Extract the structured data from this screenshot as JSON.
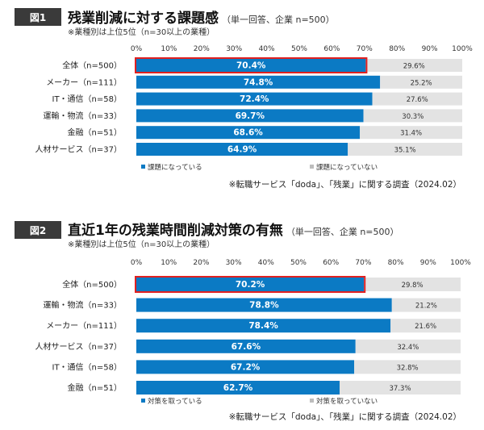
{
  "figures": [
    {
      "badge": "図1",
      "title": "残業削減に対する課題感",
      "subtitle": "（単一回答、企業 n=500）",
      "note": "※業種別は上位5位（n=30以上の業種）",
      "source": "※転職サービス「doda」、「残業」に関する調査（2024.02）"
    },
    {
      "badge": "図2",
      "title": "直近1年の残業時間削減対策の有無",
      "subtitle": "（単一回答、企業 n=500）",
      "note": "※業種別は上位5位（n=30以上の業種）",
      "source": "※転職サービス「doda」、「残業」に関する調査（2024.02）"
    }
  ],
  "chart_data": [
    {
      "type": "bar",
      "stacked": true,
      "orientation": "horizontal",
      "categories": [
        "全体（n=500）",
        "メーカー（n=111）",
        "IT・通信（n=58）",
        "運輸・物流（n=33）",
        "金融（n=51）",
        "人材サービス（n=37）"
      ],
      "series": [
        {
          "name": "課題になっている",
          "values": [
            70.4,
            74.8,
            72.4,
            69.7,
            68.6,
            64.9
          ],
          "color": "#0b7ac4"
        },
        {
          "name": "課題になっていない",
          "values": [
            29.6,
            25.2,
            27.6,
            30.3,
            31.4,
            35.1
          ],
          "color": "#e3e3e3"
        }
      ],
      "value_labels": [
        [
          "70.4%",
          "74.8%",
          "72.4%",
          "69.7%",
          "68.6%",
          "64.9%"
        ],
        [
          "29.6%",
          "25.2%",
          "27.6%",
          "30.3%",
          "31.4%",
          "35.1%"
        ]
      ],
      "xticks": [
        "0%",
        "10%",
        "20%",
        "30%",
        "40%",
        "50%",
        "60%",
        "70%",
        "80%",
        "90%",
        "100%"
      ],
      "xlim": [
        0,
        100
      ],
      "highlight_index": 0,
      "highlight_color": "#e02020",
      "legend_position": "bottom-left",
      "grid": false
    },
    {
      "type": "bar",
      "stacked": true,
      "orientation": "horizontal",
      "categories": [
        "全体（n=500）",
        "運輸・物流（n=33）",
        "メーカー（n=111）",
        "人材サービス（n=37）",
        "IT・通信（n=58）",
        "金融（n=51）"
      ],
      "series": [
        {
          "name": "対策を取っている",
          "values": [
            70.2,
            78.8,
            78.4,
            67.6,
            67.2,
            62.7
          ],
          "color": "#0b7ac4"
        },
        {
          "name": "対策を取っていない",
          "values": [
            29.8,
            21.2,
            21.6,
            32.4,
            32.8,
            37.3
          ],
          "color": "#e3e3e3"
        }
      ],
      "value_labels": [
        [
          "70.2%",
          "78.8%",
          "78.4%",
          "67.6%",
          "67.2%",
          "62.7%"
        ],
        [
          "29.8%",
          "21.2%",
          "21.6%",
          "32.4%",
          "32.8%",
          "37.3%"
        ]
      ],
      "xticks": [
        "0%",
        "10%",
        "20%",
        "30%",
        "40%",
        "50%",
        "60%",
        "70%",
        "80%",
        "90%",
        "100%"
      ],
      "xlim": [
        0,
        100
      ],
      "highlight_index": 0,
      "highlight_color": "#e02020",
      "legend_position": "bottom-left",
      "grid": false
    }
  ]
}
